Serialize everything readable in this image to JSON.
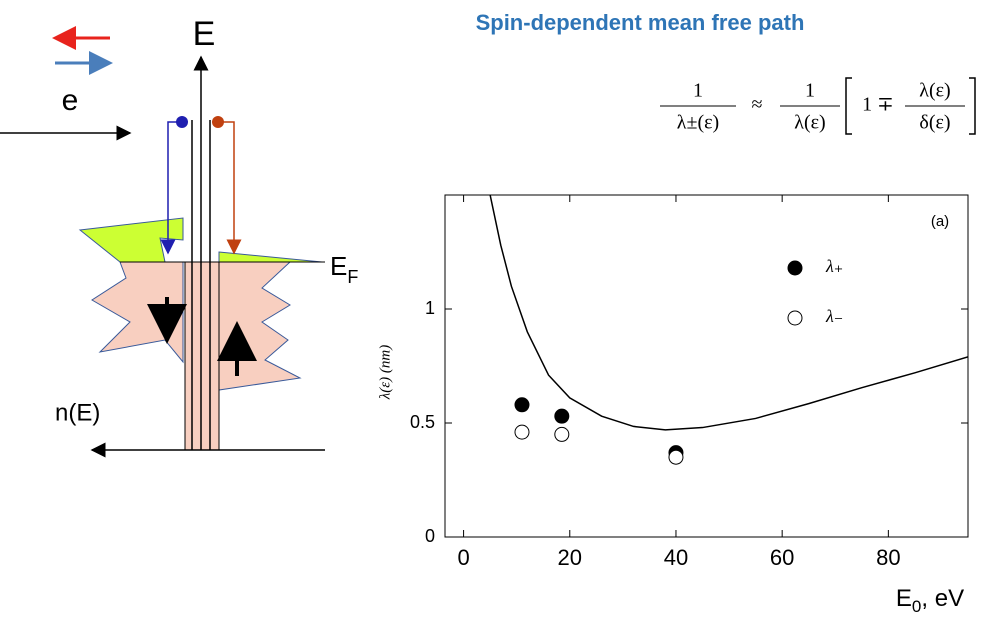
{
  "title": "Spin-dependent mean free path",
  "diagram": {
    "energy_label": "E",
    "electron_label": "e",
    "fermi_label": {
      "main": "E",
      "sub": "F"
    },
    "dos_label": "n(E)"
  },
  "formula": {
    "lhs_num": "1",
    "lhs_den": "λ±(ε)",
    "relation": "≈",
    "rhs_num": "1",
    "rhs_den": "λ(ε)",
    "bracket_term": "1 ∓",
    "frac_num": "λ(ε)",
    "frac_den": "δ(ε)"
  },
  "chart_data": {
    "type": "scatter",
    "annotation": "(a)",
    "y_label": "λ(ε)  (nm)",
    "x_label": {
      "main": "E",
      "sub": "0",
      "rest": ", eV"
    },
    "xlim": [
      -3.5,
      95
    ],
    "ylim": [
      0,
      1.5
    ],
    "xticks": [
      0,
      20,
      40,
      60,
      80
    ],
    "yticks": [
      0,
      0.5,
      1
    ],
    "series": [
      {
        "name": "λ₊",
        "color": "#000000",
        "fill": true,
        "x": [
          11,
          18.5,
          40
        ],
        "values": [
          0.58,
          0.53,
          0.37
        ]
      },
      {
        "name": "λ₋",
        "color": "#000000",
        "fill": false,
        "x": [
          11,
          18.5,
          40
        ],
        "values": [
          0.46,
          0.45,
          0.35
        ]
      }
    ],
    "line": {
      "color": "#000000",
      "x": [
        5,
        7,
        9,
        12,
        16,
        20,
        26,
        32,
        38,
        45,
        55,
        65,
        75,
        85,
        95
      ],
      "values": [
        1.5,
        1.28,
        1.1,
        0.9,
        0.71,
        0.61,
        0.53,
        0.485,
        0.47,
        0.48,
        0.52,
        0.585,
        0.655,
        0.72,
        0.79
      ]
    }
  }
}
